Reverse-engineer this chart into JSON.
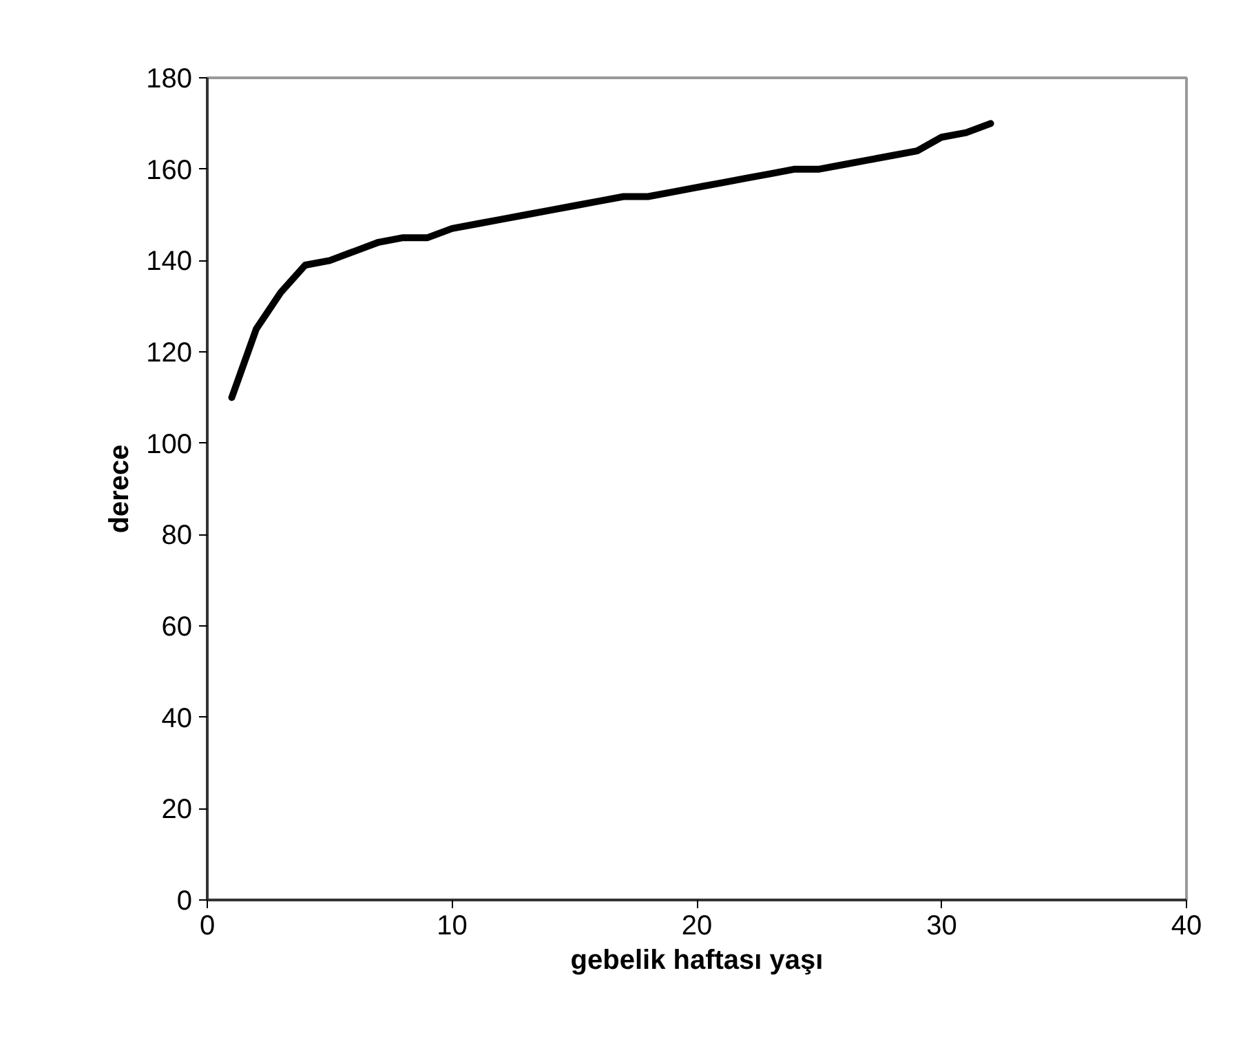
{
  "chart_data": {
    "type": "line",
    "xlabel": "gebelik haftası yaşı",
    "ylabel": "derece",
    "x": [
      1,
      2,
      3,
      4,
      5,
      6,
      7,
      8,
      9,
      10,
      11,
      12,
      13,
      14,
      15,
      16,
      17,
      18,
      19,
      20,
      21,
      22,
      23,
      24,
      25,
      26,
      27,
      28,
      29,
      30,
      31,
      32
    ],
    "series": [
      {
        "color": "#000000",
        "values": [
          110,
          125,
          133,
          139,
          140,
          142,
          144,
          145,
          145,
          147,
          148,
          149,
          150,
          151,
          152,
          153,
          154,
          154,
          155,
          156,
          157,
          158,
          159,
          160,
          160,
          161,
          162,
          163,
          164,
          167,
          168,
          170
        ]
      }
    ],
    "xlim": [
      0,
      40
    ],
    "xticks": [
      0,
      10,
      20,
      30,
      40
    ],
    "ylim": [
      0,
      180
    ],
    "yticks": [
      0,
      20,
      40,
      60,
      80,
      100,
      120,
      140,
      160,
      180
    ],
    "grid": false,
    "marker": "none",
    "line_style": "solid"
  }
}
